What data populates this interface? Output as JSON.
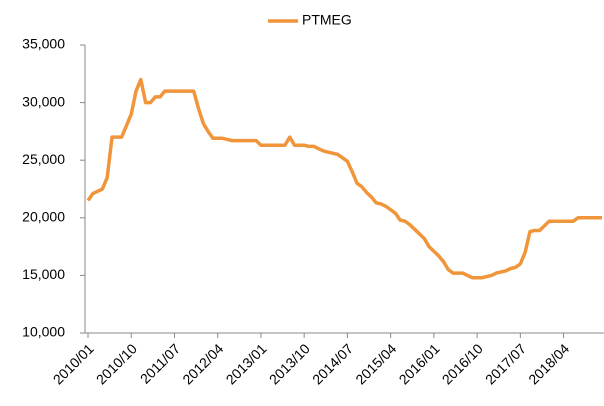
{
  "chart_data": {
    "type": "line",
    "categories": [
      "2010/01",
      null,
      null,
      null,
      null,
      null,
      null,
      null,
      null,
      "2010/10",
      null,
      null,
      null,
      null,
      null,
      null,
      null,
      null,
      "2011/07",
      null,
      null,
      null,
      null,
      null,
      null,
      null,
      null,
      "2012/04",
      null,
      null,
      null,
      null,
      null,
      null,
      null,
      null,
      "2013/01",
      null,
      null,
      null,
      null,
      null,
      null,
      null,
      null,
      "2013/10",
      null,
      null,
      null,
      null,
      null,
      null,
      null,
      null,
      "2014/07",
      null,
      null,
      null,
      null,
      null,
      null,
      null,
      null,
      "2015/04",
      null,
      null,
      null,
      null,
      null,
      null,
      null,
      null,
      "2016/01",
      null,
      null,
      null,
      null,
      null,
      null,
      null,
      null,
      "2016/10",
      null,
      null,
      null,
      null,
      null,
      null,
      null,
      null,
      "2017/07",
      null,
      null,
      null,
      null,
      null,
      null,
      null,
      null,
      "2018/04",
      null,
      null,
      null,
      null,
      null,
      null,
      null,
      null
    ],
    "series": [
      {
        "name": "PTMEG",
        "color": "#f0953a",
        "values": [
          21500,
          22100,
          22300,
          22500,
          23500,
          27000,
          27000,
          27000,
          28000,
          29000,
          31000,
          32000,
          30000,
          30000,
          30500,
          30500,
          31000,
          31000,
          31000,
          31000,
          31000,
          31000,
          31000,
          29500,
          28200,
          27500,
          26900,
          26900,
          26900,
          26800,
          26700,
          26700,
          26700,
          26700,
          26700,
          26700,
          26300,
          26300,
          26300,
          26300,
          26300,
          26300,
          27000,
          26300,
          26300,
          26300,
          26200,
          26200,
          26000,
          25800,
          25700,
          25600,
          25500,
          25200,
          24900,
          24000,
          23000,
          22700,
          22200,
          21800,
          21300,
          21200,
          21000,
          20700,
          20400,
          19800,
          19700,
          19400,
          19000,
          18600,
          18200,
          17500,
          17100,
          16700,
          16200,
          15500,
          15200,
          15200,
          15200,
          15000,
          14800,
          14800,
          14800,
          14900,
          15000,
          15200,
          15300,
          15400,
          15600,
          15700,
          16000,
          17000,
          18800,
          18900,
          18900,
          19300,
          19700,
          19700,
          19700,
          19700,
          19700,
          19700,
          20000,
          20000,
          20000,
          20000,
          20000,
          20000
        ]
      }
    ],
    "ylim": [
      10000,
      35000
    ],
    "yticks": [
      {
        "value": 10000,
        "label": "10,000"
      },
      {
        "value": 15000,
        "label": "15,000"
      },
      {
        "value": 20000,
        "label": "20,000"
      },
      {
        "value": 25000,
        "label": "25,000"
      },
      {
        "value": 30000,
        "label": "30,000"
      },
      {
        "value": 35000,
        "label": "35,000"
      }
    ],
    "legend": "top"
  }
}
